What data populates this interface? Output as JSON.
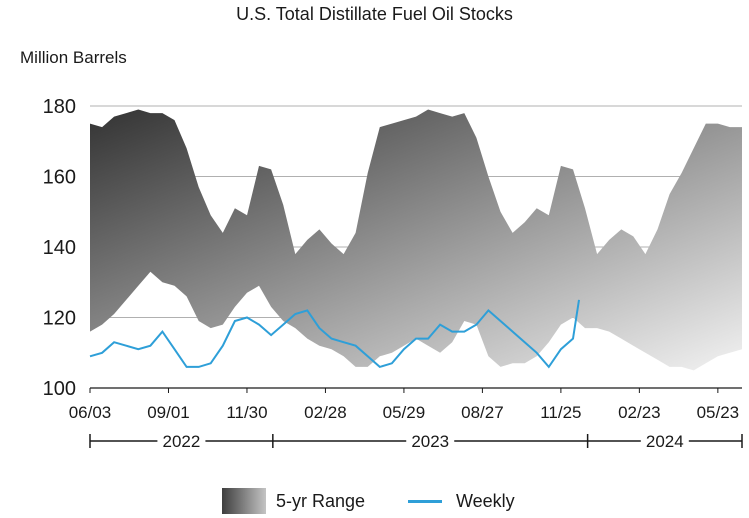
{
  "chart_data": {
    "type": "area",
    "title": "U.S. Total Distillate Fuel Oil Stocks",
    "ylabel": "Million Barrels",
    "xlabel": "",
    "ylim": [
      100,
      180
    ],
    "yticks": [
      100,
      120,
      140,
      160,
      180
    ],
    "grid": true,
    "legend_position": "bottom",
    "x_tick_labels": [
      "06/03",
      "09/01",
      "11/30",
      "02/28",
      "05/29",
      "08/27",
      "11/25",
      "02/23",
      "05/23"
    ],
    "year_labels": [
      "2022",
      "2023",
      "2024"
    ],
    "colors": {
      "range_dark": "#333333",
      "range_light": "#f2f2f2",
      "weekly": "#2e9fd8",
      "grid": "#b0b0b0"
    },
    "series": [
      {
        "name": "5-yr Range",
        "type": "band",
        "x": [
          "2022-06-03",
          "2022-06-17",
          "2022-07-01",
          "2022-07-15",
          "2022-07-29",
          "2022-08-12",
          "2022-08-26",
          "2022-09-09",
          "2022-09-23",
          "2022-10-07",
          "2022-10-21",
          "2022-11-04",
          "2022-11-18",
          "2022-12-02",
          "2022-12-16",
          "2022-12-30",
          "2023-01-13",
          "2023-01-27",
          "2023-02-10",
          "2023-02-24",
          "2023-03-10",
          "2023-03-24",
          "2023-04-07",
          "2023-04-21",
          "2023-05-05",
          "2023-05-19",
          "2023-06-02",
          "2023-06-16",
          "2023-06-30",
          "2023-07-14",
          "2023-07-28",
          "2023-08-11",
          "2023-08-25",
          "2023-09-08",
          "2023-09-22",
          "2023-10-06",
          "2023-10-20",
          "2023-11-03",
          "2023-11-17",
          "2023-12-01",
          "2023-12-15",
          "2023-12-29",
          "2024-01-12",
          "2024-01-26",
          "2024-02-09",
          "2024-02-23",
          "2024-03-08",
          "2024-03-22",
          "2024-04-05",
          "2024-04-19",
          "2024-05-03",
          "2024-05-17",
          "2024-05-31",
          "2024-06-14",
          "2024-06-28"
        ],
        "high": [
          175,
          174,
          177,
          178,
          179,
          178,
          178,
          176,
          168,
          157,
          149,
          144,
          151,
          149,
          163,
          162,
          152,
          138,
          142,
          145,
          141,
          138,
          144,
          161,
          174,
          175,
          176,
          177,
          179,
          178,
          177,
          178,
          171,
          160,
          150,
          144,
          147,
          151,
          149,
          163,
          162,
          151,
          138,
          142,
          145,
          143,
          138,
          145,
          155,
          161,
          168,
          175,
          175,
          174,
          174
        ],
        "low": [
          116,
          118,
          121,
          125,
          129,
          133,
          130,
          129,
          126,
          119,
          117,
          118,
          123,
          127,
          129,
          123,
          119,
          117,
          114,
          112,
          111,
          109,
          106,
          106,
          109,
          110,
          112,
          114,
          112,
          110,
          113,
          119,
          118,
          109,
          106,
          107,
          107,
          109,
          113,
          118,
          120,
          117,
          117,
          116,
          114,
          112,
          110,
          108,
          106,
          106,
          105,
          107,
          109,
          110,
          111
        ]
      },
      {
        "name": "Weekly",
        "type": "line",
        "x": [
          "2022-06-03",
          "2022-06-17",
          "2022-07-01",
          "2022-07-15",
          "2022-07-29",
          "2022-08-12",
          "2022-08-26",
          "2022-09-09",
          "2022-09-23",
          "2022-10-07",
          "2022-10-21",
          "2022-11-04",
          "2022-11-18",
          "2022-12-02",
          "2022-12-16",
          "2022-12-30",
          "2023-01-13",
          "2023-01-27",
          "2023-02-10",
          "2023-02-24",
          "2023-03-10",
          "2023-03-24",
          "2023-04-07",
          "2023-04-21",
          "2023-05-05",
          "2023-05-19",
          "2023-06-02",
          "2023-06-16",
          "2023-06-30",
          "2023-07-14",
          "2023-07-28",
          "2023-08-11",
          "2023-08-25",
          "2023-09-08",
          "2023-09-22",
          "2023-10-06",
          "2023-10-20",
          "2023-11-03",
          "2023-11-17",
          "2023-12-01",
          "2023-12-15",
          "2023-12-22"
        ],
        "values": [
          109,
          110,
          113,
          112,
          111,
          112,
          116,
          111,
          106,
          106,
          107,
          112,
          119,
          120,
          118,
          115,
          118,
          121,
          122,
          117,
          114,
          113,
          112,
          109,
          106,
          107,
          111,
          114,
          114,
          118,
          116,
          116,
          118,
          122,
          119,
          116,
          113,
          110,
          106,
          111,
          114,
          125
        ]
      }
    ]
  }
}
